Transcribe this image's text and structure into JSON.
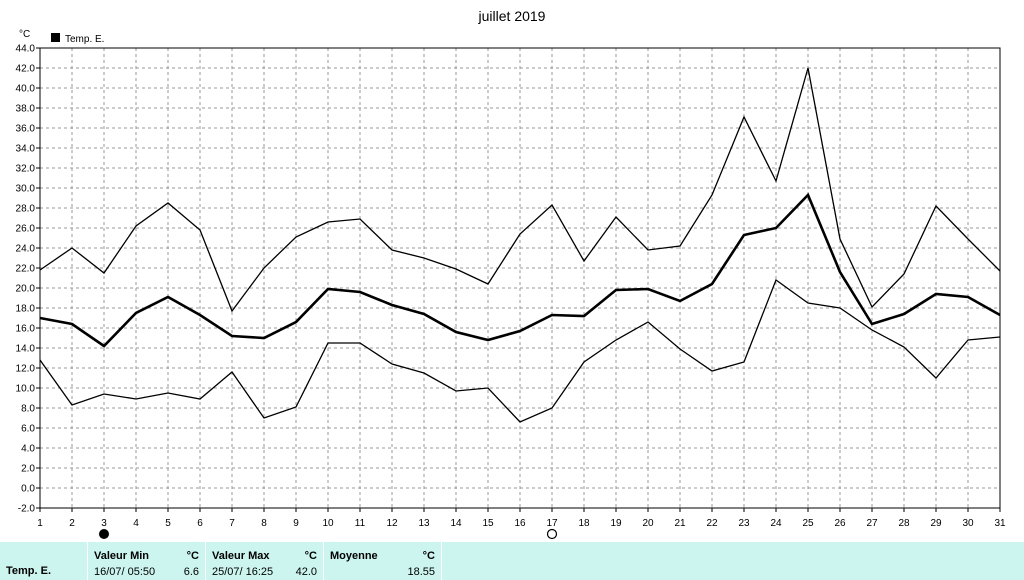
{
  "chart_data": {
    "type": "line",
    "title": "juillet 2019",
    "yunit": "°C",
    "legend": "Temp. E.",
    "x": [
      1,
      2,
      3,
      4,
      5,
      6,
      7,
      8,
      9,
      10,
      11,
      12,
      13,
      14,
      15,
      16,
      17,
      18,
      19,
      20,
      21,
      22,
      23,
      24,
      25,
      26,
      27,
      28,
      29,
      30,
      31
    ],
    "ylim": [
      -2.0,
      44.0
    ],
    "ytick_step": 2.0,
    "grid": true,
    "series": [
      {
        "role": "max",
        "values": [
          21.8,
          24.0,
          21.5,
          26.2,
          28.5,
          25.8,
          17.7,
          22.0,
          25.1,
          26.6,
          26.9,
          23.8,
          23.0,
          21.9,
          20.4,
          25.4,
          28.3,
          22.7,
          27.1,
          23.8,
          24.2,
          29.3,
          37.1,
          30.7,
          42.0,
          24.9,
          18.1,
          21.4,
          28.2,
          24.9,
          21.7
        ]
      },
      {
        "role": "mean",
        "values": [
          17.0,
          16.4,
          14.2,
          17.5,
          19.1,
          17.3,
          15.2,
          15.0,
          16.6,
          19.9,
          19.6,
          18.3,
          17.4,
          15.6,
          14.8,
          15.7,
          17.3,
          17.2,
          19.8,
          19.9,
          18.7,
          20.4,
          25.3,
          26.0,
          29.3,
          21.6,
          16.4,
          17.4,
          19.4,
          19.1,
          17.3
        ]
      },
      {
        "role": "min",
        "values": [
          12.8,
          8.3,
          9.4,
          8.9,
          9.5,
          8.9,
          11.6,
          7.0,
          8.1,
          14.5,
          14.5,
          12.4,
          11.5,
          9.7,
          10.0,
          6.6,
          8.0,
          12.6,
          14.8,
          16.6,
          13.9,
          11.7,
          12.6,
          20.8,
          18.5,
          18.0,
          15.8,
          14.1,
          11.0,
          14.8,
          15.1
        ]
      }
    ],
    "moon_markers": [
      {
        "day": 3,
        "symbol": "●"
      },
      {
        "day": 17,
        "symbol": "○"
      }
    ]
  },
  "stats": {
    "row_label": "Temp. E.",
    "min_header": "Valeur Min",
    "min_unit": "°C",
    "min_date": "16/07/  05:50",
    "min_value": "6.6",
    "max_header": "Valeur Max",
    "max_unit": "°C",
    "max_date": "25/07/  16:25",
    "max_value": "42.0",
    "avg_header": "Moyenne",
    "avg_unit": "°C",
    "avg_value": "18.55"
  }
}
